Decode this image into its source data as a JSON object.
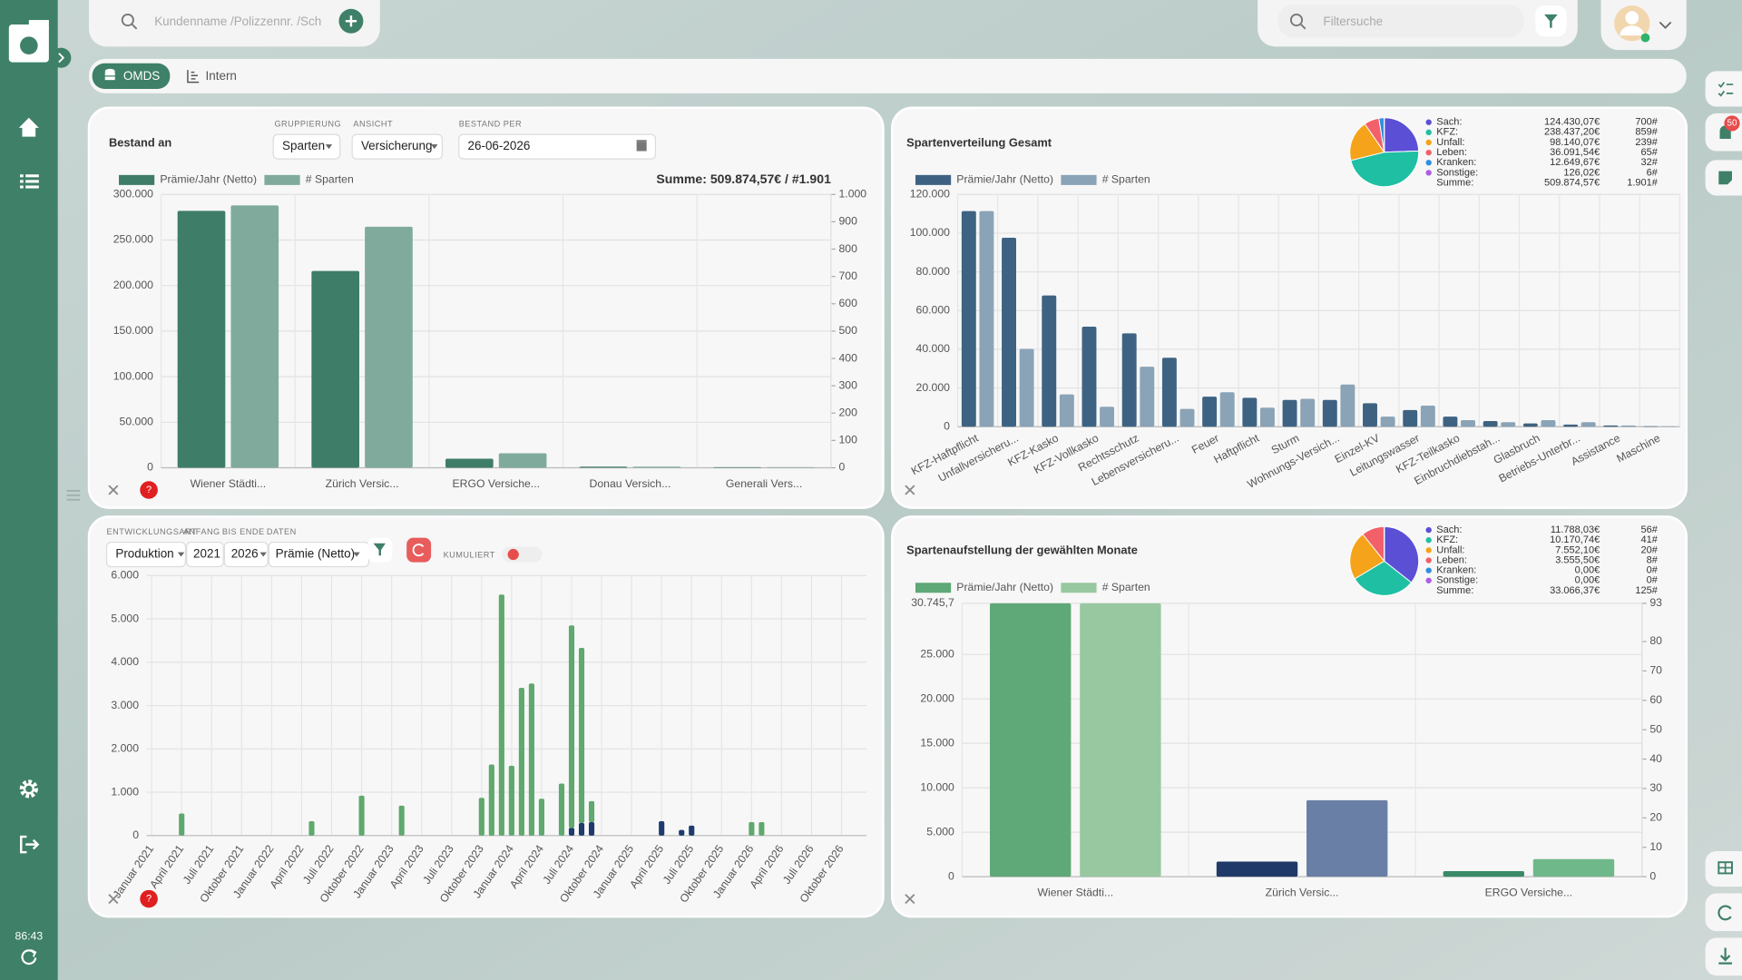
{
  "ui": {
    "search_placeholder": "Kundenname /Polizzennr. /Sch",
    "filter_placeholder": "Filtersuche",
    "tabs": [
      "OMDS",
      "Intern"
    ],
    "notification_count": "50",
    "timer": "86:43",
    "help": "?"
  },
  "chart_data": [
    {
      "type": "bar",
      "title": "Bestand an",
      "controls": [
        {
          "label": "GRUPPIERUNG",
          "value": "Sparten"
        },
        {
          "label": "ANSICHT",
          "value": "Versicherung"
        },
        {
          "label": "BESTAND PER",
          "value": "26-06-2026"
        }
      ],
      "summary": "Summe: 509.874,57€ / #1.901",
      "categories": [
        "Wiener Städti...",
        "Zürich Versic...",
        "ERGO Versiche...",
        "Donau Versich...",
        "Generali Vers..."
      ],
      "series": [
        {
          "name": "Prämie/Jahr (Netto)",
          "color": "#3e7d68",
          "values": [
            282000,
            216000,
            10000,
            1200,
            600
          ]
        },
        {
          "name": "# Sparten",
          "color": "#80ab9c",
          "axis": "y2",
          "values": [
            960,
            882,
            53,
            4,
            2
          ]
        }
      ],
      "ylim": [
        0,
        300000
      ],
      "yticks": [
        0,
        {
          "value": 50000,
          "label": "50.000"
        },
        {
          "value": 100000,
          "label": "100.000"
        },
        {
          "value": 150000,
          "label": "150.000"
        },
        {
          "value": 200000,
          "label": "200.000"
        },
        {
          "value": 250000,
          "label": "250.000"
        },
        {
          "value": 300000,
          "label": "300.000"
        }
      ],
      "y2lim": [
        0,
        1000
      ],
      "y2ticks": [
        0,
        100,
        200,
        300,
        400,
        500,
        600,
        700,
        800,
        900,
        {
          "value": 1000,
          "label": "1.000"
        }
      ],
      "grid": true
    },
    {
      "type": "bar",
      "title": "Spartenverteilung Gesamt",
      "categories": [
        "KFZ-Haftpflicht",
        "Unfallversicheru...",
        "KFZ-Kasko",
        "KFZ-Vollkasko",
        "Rechtsschutz",
        "Lebensversicheru...",
        "Feuer",
        "Haftpflicht",
        "Sturm",
        "Wohnungs-Versich...",
        "Einzel-KV",
        "Leitungswasser",
        "KFZ-Teilkasko",
        "Einbruchdiebstah...",
        "Glasbruch",
        "Betriebs-Unterbr...",
        "Assistance",
        "Maschine"
      ],
      "series": [
        {
          "name": "Prämie/Jahr (Netto)",
          "color": "#3e6382",
          "values": [
            111400,
            97600,
            67800,
            51700,
            48200,
            35600,
            15500,
            14900,
            13800,
            13800,
            12100,
            8600,
            5200,
            2900,
            1700,
            1100,
            600,
            200
          ]
        },
        {
          "name": "# Sparten",
          "color": "#8aa3b7",
          "values": [
            111400,
            40200,
            16700,
            10300,
            31000,
            9200,
            17800,
            9800,
            14400,
            21800,
            5200,
            10900,
            3400,
            2300,
            3400,
            2300,
            600,
            200
          ]
        }
      ],
      "ylim": [
        0,
        120000
      ],
      "yticks": [
        0,
        {
          "value": 20000,
          "label": "20.000"
        },
        {
          "value": 40000,
          "label": "40.000"
        },
        {
          "value": 60000,
          "label": "60.000"
        },
        {
          "value": 80000,
          "label": "80.000"
        },
        {
          "value": 100000,
          "label": "100.000"
        },
        {
          "value": 120000,
          "label": "120.000"
        }
      ],
      "grid": true
    },
    {
      "type": "pie",
      "categories": [
        "Sach:",
        "KFZ:",
        "Unfall:",
        "Leben:",
        "Kranken:",
        "Sonstige:"
      ],
      "values": [
        124430.07,
        238437.2,
        98140.07,
        36091.54,
        12649.67,
        126.02
      ],
      "value_labels": [
        "124.430,07€",
        "238.437,20€",
        "98.140,07€",
        "36.091,54€",
        "12.649,67€",
        "126,02€"
      ],
      "counts": [
        "700#",
        "859#",
        "239#",
        "65#",
        "32#",
        "6#"
      ],
      "colors": [
        "#5b4fd6",
        "#1fbfa3",
        "#f5a31a",
        "#f2606a",
        "#2f8fe0",
        "#b05ce0"
      ],
      "total": {
        "name": "Summe:",
        "value": "509.874,57€",
        "count": "1.901#"
      }
    },
    {
      "type": "bar",
      "stacked": true,
      "controls": [
        {
          "label": "ENTWICKLUNGSART",
          "value": "Produktion"
        },
        {
          "label": "ANFANG",
          "value": "2021"
        },
        {
          "label": "BIS ENDE",
          "value": "2026"
        },
        {
          "label": "DATEN",
          "value": "Prämie (Netto)"
        }
      ],
      "toggle": "KUMULIERT",
      "categories": [
        "Januar 2021",
        null,
        null,
        "April 2021",
        null,
        null,
        "Juli 2021",
        null,
        null,
        "Oktober 2021",
        null,
        null,
        "Januar 2022",
        null,
        null,
        "April 2022",
        null,
        null,
        "Juli 2022",
        null,
        null,
        "Oktober 2022",
        null,
        null,
        "Januar 2023",
        null,
        null,
        "April 2023",
        null,
        null,
        "Juli 2023",
        null,
        null,
        "Oktober 2023",
        null,
        null,
        "Januar 2024",
        null,
        null,
        "April 2024",
        null,
        null,
        "Juli 2024",
        null,
        null,
        "Oktober 2024",
        null,
        null,
        "Januar 2025",
        null,
        null,
        "April 2025",
        null,
        null,
        "Juli 2025",
        null,
        null,
        "Oktober 2025",
        null,
        null,
        "Januar 2026",
        null,
        null,
        "April 2026",
        null,
        null,
        "Juli 2026",
        null,
        null,
        "Oktober 2026",
        null,
        null
      ],
      "series": [
        {
          "color": "#1e3a6e",
          "values": [
            0,
            0,
            0,
            0,
            0,
            0,
            0,
            0,
            0,
            0,
            0,
            0,
            0,
            0,
            0,
            0,
            0,
            0,
            0,
            0,
            0,
            0,
            0,
            0,
            0,
            0,
            0,
            0,
            0,
            0,
            0,
            0,
            0,
            0,
            0,
            0,
            0,
            0,
            0,
            0,
            0,
            0,
            180,
            290,
            310,
            0,
            0,
            0,
            0,
            0,
            0,
            330,
            0,
            130,
            230,
            0,
            0,
            0,
            0,
            0,
            0,
            0,
            0,
            0,
            0,
            0,
            0,
            0,
            0,
            0,
            0,
            0
          ]
        },
        {
          "color": "#5fa86e",
          "values": [
            0,
            0,
            0,
            510,
            0,
            0,
            0,
            0,
            0,
            0,
            0,
            0,
            0,
            0,
            0,
            0,
            330,
            0,
            0,
            0,
            0,
            920,
            0,
            0,
            0,
            690,
            0,
            0,
            0,
            0,
            0,
            0,
            0,
            870,
            1640,
            5560,
            1610,
            3410,
            3510,
            850,
            0,
            1200,
            4670,
            4040,
            485,
            0,
            0,
            0,
            0,
            0,
            0,
            0,
            0,
            0,
            0,
            0,
            0,
            0,
            0,
            0,
            310,
            310,
            0,
            0,
            0,
            0,
            0,
            0,
            0,
            0,
            0,
            0
          ]
        }
      ],
      "ylim": [
        0,
        6000
      ],
      "yticks": [
        0,
        {
          "value": 1000,
          "label": "1.000"
        },
        {
          "value": 2000,
          "label": "2.000"
        },
        {
          "value": 3000,
          "label": "3.000"
        },
        {
          "value": 4000,
          "label": "4.000"
        },
        {
          "value": 5000,
          "label": "5.000"
        },
        {
          "value": 6000,
          "label": "6.000"
        }
      ],
      "grid": true
    },
    {
      "type": "bar",
      "title": "Spartenaufstellung der gewählten Monate",
      "categories": [
        "Wiener Städti...",
        "Zürich Versic...",
        "ERGO Versiche..."
      ],
      "series": [
        {
          "name": "Prämie/Jahr (Netto)",
          "color": "#5fa878",
          "colors": [
            "#5fa878",
            "#1f3a68",
            "#3a8a68"
          ],
          "values": [
            30745.7,
            1700,
            620
          ]
        },
        {
          "name": "# Sparten",
          "color": "#98c8a0",
          "colors": [
            "#98c8a0",
            "#6a7fa6",
            "#6fb88a"
          ],
          "axis": "y2",
          "values": [
            93,
            26,
            6
          ]
        }
      ],
      "ylim": [
        0,
        30745.7
      ],
      "yticks": [
        0,
        {
          "value": 5000,
          "label": "5.000"
        },
        {
          "value": 10000,
          "label": "10.000"
        },
        {
          "value": 15000,
          "label": "15.000"
        },
        {
          "value": 20000,
          "label": "20.000"
        },
        {
          "value": 25000,
          "label": "25.000"
        },
        {
          "value": 30745.7,
          "label": "30.745,7"
        }
      ],
      "y2lim": [
        0,
        93
      ],
      "y2ticks": [
        0,
        10,
        20,
        30,
        40,
        50,
        60,
        70,
        80,
        93
      ],
      "grid": true
    },
    {
      "type": "pie",
      "categories": [
        "Sach:",
        "KFZ:",
        "Unfall:",
        "Leben:",
        "Kranken:",
        "Sonstige:"
      ],
      "values": [
        11788.03,
        10170.74,
        7552.1,
        3555.5,
        0,
        0
      ],
      "value_labels": [
        "11.788,03€",
        "10.170,74€",
        "7.552,10€",
        "3.555,50€",
        "0,00€",
        "0,00€"
      ],
      "counts": [
        "56#",
        "41#",
        "20#",
        "8#",
        "0#",
        "0#"
      ],
      "colors": [
        "#5b4fd6",
        "#1fbfa3",
        "#f5a31a",
        "#f2606a",
        "#2f8fe0",
        "#b05ce0"
      ],
      "total": {
        "name": "Summe:",
        "value": "33.066,37€",
        "count": "125#"
      }
    }
  ]
}
